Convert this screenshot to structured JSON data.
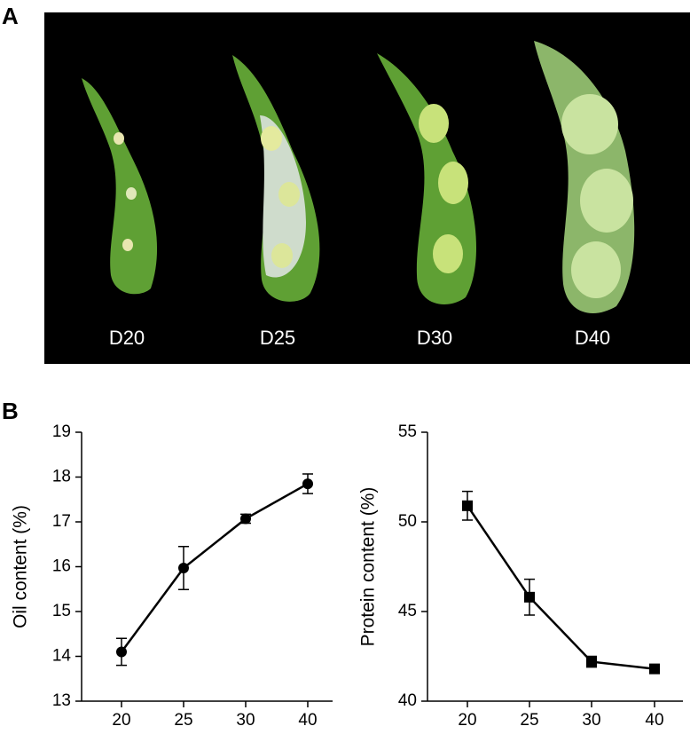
{
  "panel_a": {
    "label": "A",
    "stages": [
      "D20",
      "D25",
      "D30",
      "D40"
    ]
  },
  "panel_b": {
    "label": "B"
  },
  "chart_data": [
    {
      "type": "line",
      "y_label": "Oil content (%)",
      "marker": "circle",
      "color": "#000000",
      "categories": [
        "20",
        "25",
        "30",
        "40"
      ],
      "values": [
        14.1,
        15.97,
        17.07,
        17.85
      ],
      "errors": [
        0.3,
        0.48,
        0.1,
        0.22
      ],
      "ylim": [
        13,
        19
      ],
      "yticks": [
        13,
        14,
        15,
        16,
        17,
        18,
        19
      ]
    },
    {
      "type": "line",
      "y_label": "Protein content (%)",
      "marker": "square",
      "color": "#000000",
      "categories": [
        "20",
        "25",
        "30",
        "40"
      ],
      "values": [
        50.9,
        45.8,
        42.2,
        41.8
      ],
      "errors": [
        0.8,
        1.0,
        0.3,
        0.25
      ],
      "ylim": [
        40,
        55
      ],
      "yticks": [
        40,
        45,
        50,
        55
      ]
    }
  ]
}
